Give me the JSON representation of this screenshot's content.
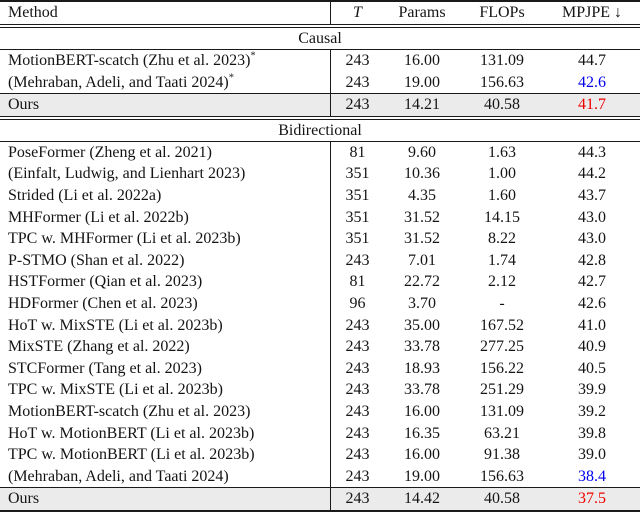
{
  "table": {
    "columns": {
      "method": "Method",
      "t": "T",
      "params": "Params",
      "flops": "FLOPs",
      "mpjpe": "MPJPE",
      "mpjpe_arrow": "↓"
    },
    "sections": [
      {
        "label": "Causal",
        "rows": [
          {
            "method": "MotionBERT-scatch (Zhu et al. 2023)",
            "sup": "*",
            "t": "243",
            "params": "16.00",
            "flops": "131.09",
            "mpjpe": "44.7",
            "mpjpe_color": "black"
          },
          {
            "method": "(Mehraban, Adeli, and Taati 2024)",
            "sup": "*",
            "t": "243",
            "params": "19.00",
            "flops": "156.63",
            "mpjpe": "42.6",
            "mpjpe_color": "blue"
          },
          {
            "method": "Ours",
            "sup": "",
            "t": "243",
            "params": "14.21",
            "flops": "40.58",
            "mpjpe": "41.7",
            "mpjpe_color": "red"
          }
        ]
      },
      {
        "label": "Bidirectional",
        "rows": [
          {
            "method": "PoseFormer (Zheng et al. 2021)",
            "sup": "",
            "t": "81",
            "params": "9.60",
            "flops": "1.63",
            "mpjpe": "44.3",
            "mpjpe_color": "black"
          },
          {
            "method": "(Einfalt, Ludwig, and Lienhart 2023)",
            "sup": "",
            "t": "351",
            "params": "10.36",
            "flops": "1.00",
            "mpjpe": "44.2",
            "mpjpe_color": "black"
          },
          {
            "method": "Strided (Li et al. 2022a)",
            "sup": "",
            "t": "351",
            "params": "4.35",
            "flops": "1.60",
            "mpjpe": "43.7",
            "mpjpe_color": "black"
          },
          {
            "method": "MHFormer (Li et al. 2022b)",
            "sup": "",
            "t": "351",
            "params": "31.52",
            "flops": "14.15",
            "mpjpe": "43.0",
            "mpjpe_color": "black"
          },
          {
            "method": "TPC w. MHFormer (Li et al. 2023b)",
            "sup": "",
            "t": "351",
            "params": "31.52",
            "flops": "8.22",
            "mpjpe": "43.0",
            "mpjpe_color": "black"
          },
          {
            "method": "P-STMO (Shan et al. 2022)",
            "sup": "",
            "t": "243",
            "params": "7.01",
            "flops": "1.74",
            "mpjpe": "42.8",
            "mpjpe_color": "black"
          },
          {
            "method": "HSTFormer (Qian et al. 2023)",
            "sup": "",
            "t": "81",
            "params": "22.72",
            "flops": "2.12",
            "mpjpe": "42.7",
            "mpjpe_color": "black"
          },
          {
            "method": "HDFormer (Chen et al. 2023)",
            "sup": "",
            "t": "96",
            "params": "3.70",
            "flops": "-",
            "mpjpe": "42.6",
            "mpjpe_color": "black"
          },
          {
            "method": "HoT w. MixSTE (Li et al. 2023b)",
            "sup": "",
            "t": "243",
            "params": "35.00",
            "flops": "167.52",
            "mpjpe": "41.0",
            "mpjpe_color": "black"
          },
          {
            "method": "MixSTE (Zhang et al. 2022)",
            "sup": "",
            "t": "243",
            "params": "33.78",
            "flops": "277.25",
            "mpjpe": "40.9",
            "mpjpe_color": "black"
          },
          {
            "method": "STCFormer (Tang et al. 2023)",
            "sup": "",
            "t": "243",
            "params": "18.93",
            "flops": "156.22",
            "mpjpe": "40.5",
            "mpjpe_color": "black"
          },
          {
            "method": "TPC w. MixSTE (Li et al. 2023b)",
            "sup": "",
            "t": "243",
            "params": "33.78",
            "flops": "251.29",
            "mpjpe": "39.9",
            "mpjpe_color": "black"
          },
          {
            "method": "MotionBERT-scatch (Zhu et al. 2023)",
            "sup": "",
            "t": "243",
            "params": "16.00",
            "flops": "131.09",
            "mpjpe": "39.2",
            "mpjpe_color": "black"
          },
          {
            "method": "HoT w. MotionBERT (Li et al. 2023b)",
            "sup": "",
            "t": "243",
            "params": "16.35",
            "flops": "63.21",
            "mpjpe": "39.8",
            "mpjpe_color": "black"
          },
          {
            "method": "TPC w. MotionBERT (Li et al. 2023b)",
            "sup": "",
            "t": "243",
            "params": "16.00",
            "flops": "91.38",
            "mpjpe": "39.0",
            "mpjpe_color": "black"
          },
          {
            "method": "(Mehraban, Adeli, and Taati 2024)",
            "sup": "",
            "t": "243",
            "params": "19.00",
            "flops": "156.63",
            "mpjpe": "38.4",
            "mpjpe_color": "blue"
          },
          {
            "method": "Ours",
            "sup": "",
            "t": "243",
            "params": "14.42",
            "flops": "40.58",
            "mpjpe": "37.5",
            "mpjpe_color": "red"
          }
        ]
      }
    ],
    "colors": {
      "best_value": "#ee0000",
      "second_best_value": "#0000ee",
      "ours_row_bg": "#ebebeb"
    }
  }
}
